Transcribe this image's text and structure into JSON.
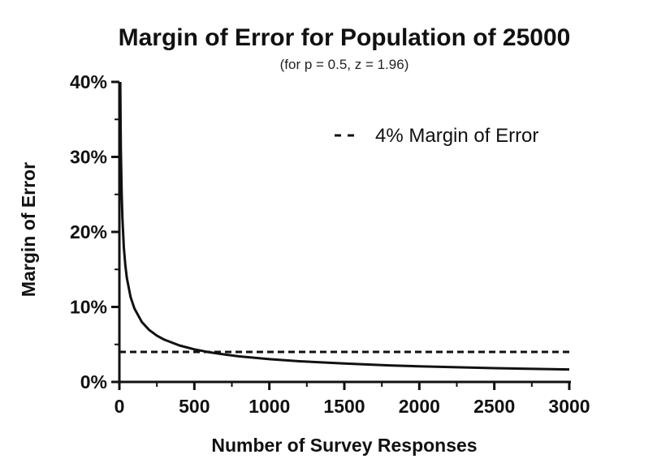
{
  "chart_data": {
    "type": "line",
    "title": "Margin of Error for Population of 25000",
    "subtitle": "(for p = 0.5, z = 1.96)",
    "xlabel": "Number of Survey Responses",
    "ylabel": "Margin of Error",
    "xlim": [
      0,
      3000
    ],
    "ylim": [
      0,
      40
    ],
    "x_ticks": [
      0,
      500,
      1000,
      1500,
      2000,
      2500,
      3000
    ],
    "y_ticks": [
      0,
      10,
      20,
      30,
      40
    ],
    "y_tick_labels": [
      "0%",
      "10%",
      "20%",
      "30%",
      "40%"
    ],
    "grid": false,
    "legend_position": "top-right",
    "series": [
      {
        "name": "",
        "style": "solid",
        "color": "#111111",
        "x": [
          6,
          8,
          10,
          15,
          20,
          30,
          40,
          50,
          75,
          100,
          150,
          200,
          250,
          300,
          400,
          500,
          600,
          700,
          800,
          1000,
          1200,
          1500,
          1800,
          2000,
          2500,
          3000
        ],
        "y": [
          40.0,
          34.65,
          30.99,
          25.3,
          21.91,
          17.89,
          15.49,
          13.86,
          11.31,
          9.79,
          7.98,
          6.91,
          6.17,
          5.63,
          4.87,
          4.35,
          3.96,
          3.66,
          3.41,
          3.04,
          2.76,
          2.45,
          2.21,
          2.09,
          1.84,
          1.66
        ]
      },
      {
        "name": "4% Margin of Error",
        "style": "dashed",
        "color": "#111111",
        "x": [
          0,
          3000
        ],
        "y": [
          4,
          4
        ]
      }
    ]
  }
}
